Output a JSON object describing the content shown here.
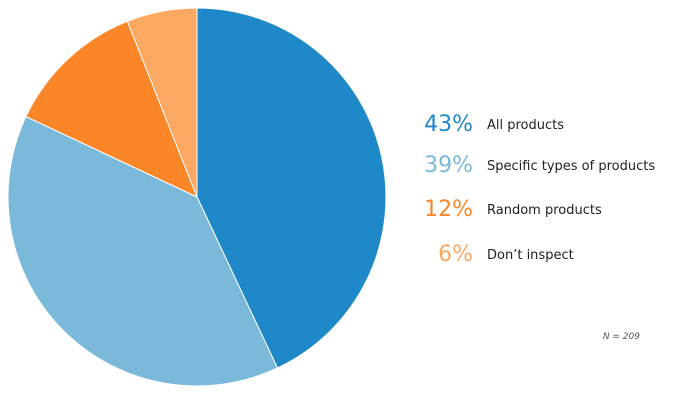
{
  "chart_data": {
    "type": "pie",
    "title": "",
    "slices": [
      {
        "label": "All products",
        "value": 43,
        "pct_label": "43%",
        "color": "#1f88c8"
      },
      {
        "label": "Specific types of products",
        "value": 39,
        "pct_label": "39%",
        "color": "#7ab9da"
      },
      {
        "label": "Random products",
        "value": 12,
        "pct_label": "12%",
        "color": "#fb8627"
      },
      {
        "label": "Don’t inspect",
        "value": 6,
        "pct_label": "6%",
        "color": "#fba862"
      }
    ],
    "start_angle_deg": 0,
    "direction": "clockwise",
    "legend_position": "right",
    "note": "N = 209"
  }
}
